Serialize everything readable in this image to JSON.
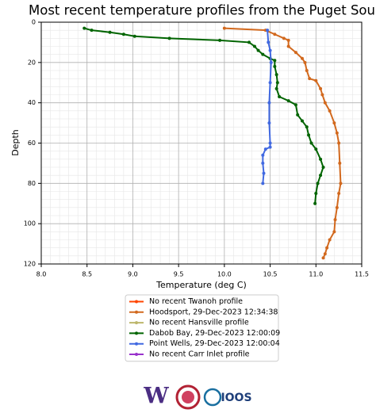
{
  "chart_data": {
    "type": "line",
    "title": "Most recent temperature profiles from the Puget Sound",
    "xlabel": "Temperature (deg C)",
    "ylabel": "Depth",
    "xlim": [
      8.0,
      11.5
    ],
    "ylim": [
      120,
      0
    ],
    "xticks": [
      {
        "value": 8.0,
        "label": "8.0"
      },
      8.5,
      {
        "value": 9.0,
        "label": "9.0"
      },
      9.5,
      {
        "value": 10.0,
        "label": "10.0"
      },
      10.5,
      {
        "value": 11.0,
        "label": "11.0"
      },
      11.5
    ],
    "yticks": [
      0,
      20,
      40,
      60,
      80,
      100,
      120
    ],
    "grid": true,
    "minor_grid": true,
    "minor_divisions": 5,
    "legend": "below",
    "series": [
      {
        "name": "No recent Twanoh profile",
        "color": "#ff4500",
        "x": [],
        "y": []
      },
      {
        "name": "Hoodsport, 29-Dec-2023 12:34:38",
        "color": "#d2691e",
        "x": [
          10.0,
          10.45,
          10.55,
          10.65,
          10.7,
          10.7,
          10.78,
          10.85,
          10.88,
          10.9,
          10.93,
          11.0,
          11.05,
          11.07,
          11.1,
          11.15,
          11.2,
          11.23,
          11.25,
          11.26,
          11.27,
          11.25,
          11.23,
          11.21,
          11.2,
          11.15,
          11.12,
          11.1,
          11.08
        ],
        "y": [
          3,
          4,
          6,
          8,
          9,
          12,
          15,
          18,
          20,
          24,
          28,
          29,
          33,
          36,
          40,
          44,
          50,
          55,
          60,
          70,
          80,
          85,
          92,
          98,
          104,
          108,
          112,
          115,
          117
        ]
      },
      {
        "name": "No recent Hansville profile",
        "color": "#bdb76b",
        "x": [],
        "y": []
      },
      {
        "name": "Dabob Bay, 29-Dec-2023 12:00:09",
        "color": "#006400",
        "x": [
          8.47,
          8.55,
          8.75,
          8.9,
          9.02,
          9.4,
          9.95,
          10.27,
          10.33,
          10.37,
          10.42,
          10.5,
          10.55,
          10.55,
          10.57,
          10.58,
          10.57,
          10.6,
          10.7,
          10.78,
          10.8,
          10.85,
          10.9,
          10.92,
          10.95,
          11.0,
          11.05,
          11.08,
          11.05,
          11.02,
          11.0,
          10.99
        ],
        "y": [
          3,
          4,
          5,
          6,
          7,
          8,
          9,
          10,
          12,
          14,
          16,
          18,
          19,
          22,
          26,
          30,
          33,
          37,
          39,
          41,
          46,
          49,
          52,
          56,
          60,
          63,
          68,
          72,
          76,
          80,
          85,
          90
        ]
      },
      {
        "name": "Point Wells, 29-Dec-2023 12:00:04",
        "color": "#4169e1",
        "x": [
          10.47,
          10.48,
          10.5,
          10.51,
          10.5,
          10.49,
          10.49,
          10.5,
          10.5,
          10.45,
          10.42,
          10.42,
          10.43,
          10.42
        ],
        "y": [
          4,
          10,
          14,
          20,
          30,
          40,
          50,
          60,
          62,
          63,
          66,
          70,
          75,
          80
        ]
      },
      {
        "name": "No recent Carr Inlet profile",
        "color": "#9932cc",
        "x": [],
        "y": []
      }
    ]
  },
  "footer": {
    "uw": "W",
    "ioos": "IOOS"
  }
}
